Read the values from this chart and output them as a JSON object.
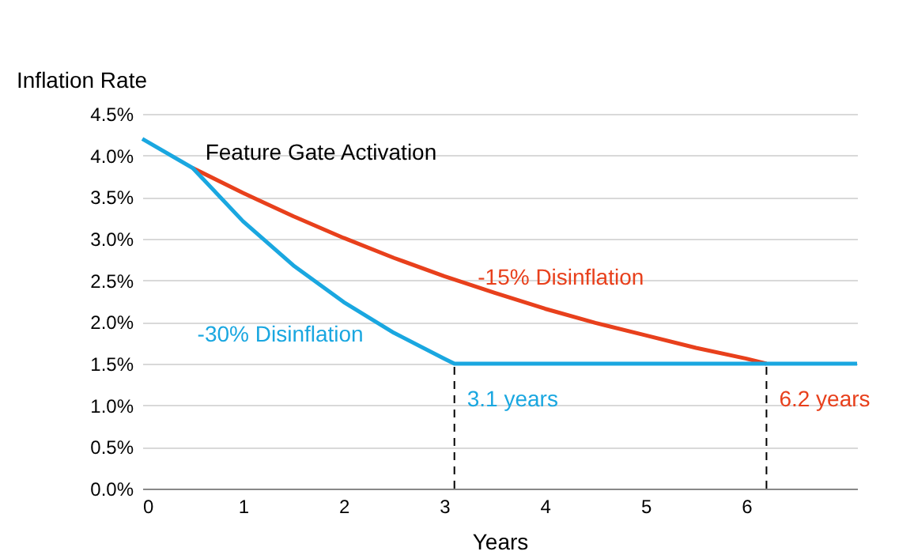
{
  "chart_data": {
    "type": "line",
    "ylabel": "Inflation Rate",
    "xlabel": "Years",
    "xlim": [
      0,
      7.1
    ],
    "xticks": [
      0,
      1,
      2,
      3,
      4,
      5,
      6
    ],
    "ylim": [
      0,
      4.5
    ],
    "yticks": [
      {
        "value": 0,
        "label": "0.0%"
      },
      {
        "value": 0.5,
        "label": "0.5%"
      },
      {
        "value": 1,
        "label": "1.0%"
      },
      {
        "value": 1.5,
        "label": "1.5%"
      },
      {
        "value": 2,
        "label": "2.0%"
      },
      {
        "value": 2.5,
        "label": "2.5%"
      },
      {
        "value": 3,
        "label": "3.0%"
      },
      {
        "value": 3.5,
        "label": "3.5%"
      },
      {
        "value": 4,
        "label": "4.0%"
      },
      {
        "value": 4.5,
        "label": "4.5%"
      }
    ],
    "grid": "y",
    "legend": false,
    "line_style": "solid",
    "marker": "none",
    "series": [
      {
        "name": "-15% Disinflation",
        "color": "#e8401c",
        "x": [
          0.5,
          1,
          1.5,
          2,
          2.5,
          3,
          3.5,
          4,
          4.5,
          5,
          5.5,
          6,
          6.2
        ],
        "values": [
          3.85,
          3.55,
          3.27,
          3.01,
          2.77,
          2.55,
          2.35,
          2.16,
          1.99,
          1.84,
          1.69,
          1.56,
          1.5
        ]
      },
      {
        "name": "-30% Disinflation",
        "color": "#1aa7e0",
        "x": [
          0,
          0.5,
          1,
          1.5,
          2,
          2.5,
          3,
          3.1,
          7.1
        ],
        "values": [
          4.2,
          3.85,
          3.21,
          2.68,
          2.24,
          1.87,
          1.56,
          1.5,
          1.5
        ]
      }
    ],
    "ref_lines": [
      {
        "axis": "x",
        "value": 3.1,
        "label": "3.1 years",
        "color": "#000000",
        "line_style": "dashed"
      },
      {
        "axis": "x",
        "value": 6.2,
        "label": "6.2 years",
        "color": "#000000",
        "line_style": "dashed"
      }
    ],
    "annotations": [
      {
        "text": "Feature Gate Activation",
        "x": 0.5,
        "y": 3.85
      }
    ]
  }
}
